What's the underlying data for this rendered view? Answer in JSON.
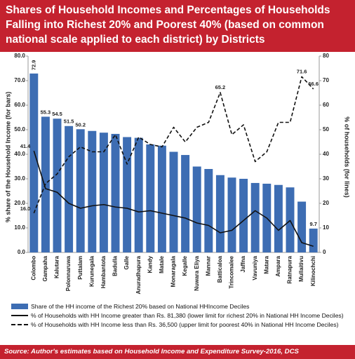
{
  "chart_data": {
    "type": "combo",
    "title": "Shares of Household Incomes and Percentages of Households Falling into Richest 20% and Poorest 40% (based on common national scale applied to each district) by Districts",
    "y_label": "% share of the Household Income (for bars)",
    "y2_label": "% of households (for lines)",
    "source": "Source: Author's estimates based on Household Income and Expenditure Survey-2016, DCS",
    "categories": [
      "Colombo",
      "Gampaha",
      "Kalutara",
      "Polonnaruwa",
      "Puttalam",
      "Kurunegala",
      "Hambantota",
      "Badulla",
      "Galle",
      "Anuradhapura",
      "Kandy",
      "Matale",
      "Monaragala",
      "Kegalle",
      "Nuwara Eliya",
      "Mannar",
      "Batticaloa",
      "Trincomalee",
      "Jaffna",
      "Vavuniya",
      "Matara",
      "Ampara",
      "Ratnapura",
      "Mullaitivu",
      "Kilinochchi"
    ],
    "series": [
      {
        "name": "Share of the HH income of the Richest 20% based on National HHIncome Deciles",
        "type": "bar",
        "axis": "y",
        "color": "#3d6db3",
        "values": [
          72.9,
          55.3,
          54.5,
          51.5,
          50.2,
          49.5,
          48.8,
          48.3,
          47,
          46.7,
          44,
          43.5,
          41,
          39.7,
          35,
          34,
          31.5,
          30.5,
          30,
          28.3,
          28,
          27.5,
          26.5,
          20.7,
          9.7
        ],
        "value_labels": [
          "72.9",
          "55.3",
          "54.5",
          "51.5",
          "50.2",
          null,
          null,
          null,
          null,
          null,
          null,
          null,
          null,
          null,
          null,
          null,
          null,
          null,
          null,
          null,
          null,
          null,
          null,
          null,
          "9.7"
        ]
      },
      {
        "name": "% of Households with HH Income greater than Rs. 81,380 (lower limit for richest 20% in National HH Income Deciles)",
        "type": "line",
        "dashed": false,
        "axis": "y2",
        "color": "#111111",
        "values": [
          41.4,
          26,
          24.5,
          20,
          18,
          19,
          19.5,
          18.5,
          18,
          16.5,
          17,
          16,
          15,
          14,
          12,
          11,
          8,
          9,
          13,
          17,
          14,
          9,
          13,
          4,
          2.5
        ],
        "value_labels": [
          "41.4",
          null,
          null,
          null,
          null,
          null,
          null,
          null,
          null,
          null,
          null,
          null,
          null,
          null,
          null,
          null,
          null,
          null,
          null,
          null,
          null,
          null,
          null,
          null,
          null
        ]
      },
      {
        "name": "% of Households with HH Income less than Rs. 36,500 (upper limit for poorest 40% in National HH Income Deciles)",
        "type": "line",
        "dashed": true,
        "axis": "y2",
        "color": "#111111",
        "values": [
          16,
          28,
          32,
          39,
          43,
          41,
          41,
          48,
          36,
          47,
          44,
          43,
          51,
          45,
          51,
          53,
          65.2,
          48,
          52,
          37,
          41,
          53,
          53,
          71.6,
          66.6
        ],
        "value_labels": [
          "16.0",
          null,
          null,
          null,
          null,
          null,
          null,
          null,
          null,
          null,
          null,
          null,
          null,
          null,
          null,
          null,
          "65.2",
          null,
          null,
          null,
          null,
          null,
          null,
          "71.6",
          "66.6"
        ]
      }
    ],
    "ylim": [
      0,
      80
    ],
    "yticks": [
      {
        "value": 0,
        "label": "0.0"
      },
      {
        "value": 10,
        "label": "10.0"
      },
      {
        "value": 20,
        "label": "20.0"
      },
      {
        "value": 30,
        "label": "30.0"
      },
      {
        "value": 40,
        "label": "40.0"
      },
      {
        "value": 50,
        "label": "50.0"
      },
      {
        "value": 60,
        "label": "60.0"
      },
      {
        "value": 70,
        "label": "70.0"
      },
      {
        "value": 80,
        "label": "80.0"
      }
    ],
    "y2lim": [
      0,
      80
    ],
    "y2ticks": [
      0,
      10,
      20,
      30,
      40,
      50,
      60,
      70,
      80
    ],
    "grid": false
  }
}
